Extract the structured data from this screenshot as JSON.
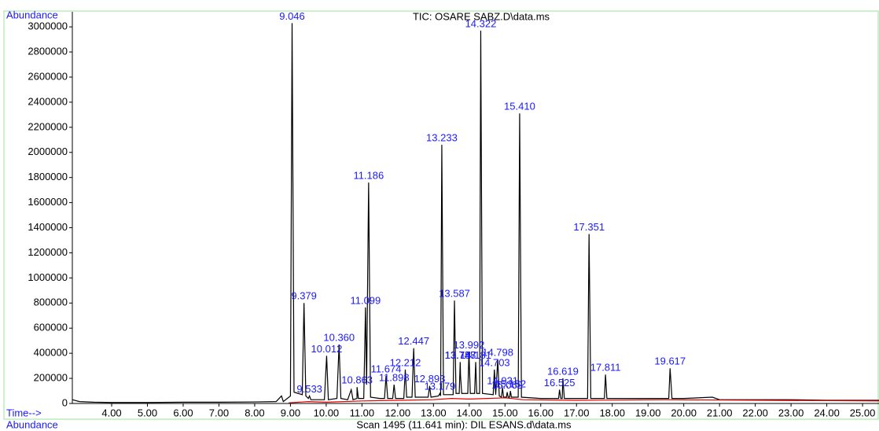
{
  "chart_data": {
    "type": "line",
    "title": "TIC: OSARE SABZ.D\\data.ms",
    "ylabel": "Abundance",
    "xlabel": "Time-->",
    "footer_label": "Abundance",
    "footer": "Scan 1495 (11.641 min): DIL ESANS.d\\data.ms",
    "xlim": [
      2.9,
      25.46
    ],
    "ylim": [
      0,
      3120000
    ],
    "xticks": [
      {
        "value": 4,
        "label": "4.00"
      },
      {
        "value": 5,
        "label": "5.00"
      },
      {
        "value": 6,
        "label": "6.00"
      },
      {
        "value": 7,
        "label": "7.00"
      },
      {
        "value": 8,
        "label": "8.00"
      },
      {
        "value": 9,
        "label": "9.00"
      },
      {
        "value": 10,
        "label": "10.00"
      },
      {
        "value": 11,
        "label": "11.00"
      },
      {
        "value": 12,
        "label": "12.00"
      },
      {
        "value": 13,
        "label": "13.00"
      },
      {
        "value": 14,
        "label": "14.00"
      },
      {
        "value": 15,
        "label": "15.00"
      },
      {
        "value": 16,
        "label": "16.00"
      },
      {
        "value": 17,
        "label": "17.00"
      },
      {
        "value": 18,
        "label": "18.00"
      },
      {
        "value": 19,
        "label": "19.00"
      },
      {
        "value": 20,
        "label": "20.00"
      },
      {
        "value": 21,
        "label": "21.00"
      },
      {
        "value": 22,
        "label": "22.00"
      },
      {
        "value": 23,
        "label": "23.00"
      },
      {
        "value": 24,
        "label": "24.00"
      },
      {
        "value": 25,
        "label": "25.00"
      }
    ],
    "yticks": [
      0,
      200000,
      400000,
      600000,
      800000,
      1000000,
      1200000,
      1400000,
      1600000,
      1800000,
      2000000,
      2200000,
      2400000,
      2600000,
      2800000,
      3000000
    ],
    "series": [
      {
        "name": "TIC",
        "color": "#000000",
        "x": [
          2.9,
          3.1,
          3.5,
          4.0,
          5.0,
          6.0,
          7.0,
          8.0,
          8.6,
          8.75,
          8.8,
          9.0,
          9.046,
          9.1,
          9.33,
          9.379,
          9.43,
          9.5,
          9.533,
          9.57,
          9.95,
          10.012,
          10.06,
          10.3,
          10.36,
          10.41,
          10.6,
          10.7,
          10.75,
          10.86,
          10.863,
          10.9,
          11.05,
          11.099,
          11.13,
          11.186,
          11.24,
          11.5,
          11.63,
          11.674,
          11.72,
          11.86,
          11.898,
          11.94,
          12.17,
          12.212,
          12.25,
          12.4,
          12.447,
          12.49,
          12.85,
          12.893,
          12.93,
          13.14,
          13.179,
          13.2,
          13.233,
          13.28,
          13.55,
          13.587,
          13.63,
          13.72,
          13.748,
          13.757,
          13.79,
          13.96,
          13.992,
          14.03,
          14.15,
          14.181,
          14.21,
          14.29,
          14.322,
          14.37,
          14.67,
          14.703,
          14.74,
          14.798,
          14.84,
          14.9,
          14.931,
          14.96,
          15.04,
          15.062,
          15.09,
          15.13,
          15.152,
          15.18,
          15.37,
          15.41,
          15.46,
          16.0,
          16.5,
          16.525,
          16.56,
          16.6,
          16.619,
          16.66,
          17.0,
          17.31,
          17.351,
          17.4,
          17.78,
          17.811,
          17.85,
          18.5,
          19.0,
          19.58,
          19.617,
          19.67,
          20.0,
          20.8,
          21.0,
          22.0,
          23.0,
          24.0,
          25.0,
          25.46
        ],
        "values": [
          30000,
          15000,
          10000,
          8000,
          8000,
          10000,
          10000,
          12000,
          15000,
          60000,
          15000,
          60000,
          3030000,
          90000,
          70000,
          800000,
          60000,
          40000,
          60000,
          30000,
          30000,
          380000,
          30000,
          40000,
          470000,
          40000,
          30000,
          110000,
          30000,
          40000,
          130000,
          40000,
          40000,
          765000,
          150000,
          1760000,
          50000,
          40000,
          40000,
          220000,
          40000,
          40000,
          150000,
          40000,
          40000,
          270000,
          50000,
          50000,
          440000,
          50000,
          50000,
          140000,
          50000,
          60000,
          80000,
          60000,
          2060000,
          70000,
          70000,
          820000,
          80000,
          80000,
          330000,
          220000,
          80000,
          80000,
          410000,
          80000,
          80000,
          330000,
          80000,
          80000,
          2970000,
          80000,
          70000,
          270000,
          70000,
          350000,
          60000,
          50000,
          125000,
          50000,
          50000,
          90000,
          50000,
          50000,
          100000,
          50000,
          50000,
          2310000,
          50000,
          40000,
          40000,
          110000,
          40000,
          40000,
          200000,
          40000,
          40000,
          40000,
          1350000,
          40000,
          40000,
          230000,
          40000,
          40000,
          40000,
          40000,
          280000,
          40000,
          40000,
          50000,
          30000,
          30000,
          30000,
          25000,
          25000,
          25000
        ]
      },
      {
        "name": "Baseline",
        "color": "#e00000",
        "x": [
          8.95,
          9.5,
          10.0,
          11.0,
          12.0,
          13.0,
          13.5,
          14.0,
          14.5,
          15.0,
          15.5,
          17.0,
          19.5,
          25.46
        ],
        "values": [
          5000,
          15000,
          10000,
          20000,
          25000,
          30000,
          40000,
          35000,
          40000,
          45000,
          30000,
          25000,
          30000,
          20000
        ]
      }
    ],
    "peaks": [
      {
        "value": 9.046,
        "label": "9.046"
      },
      {
        "value": 9.379,
        "label": "9.379"
      },
      {
        "value": 9.533,
        "label": "9.533"
      },
      {
        "value": 10.012,
        "label": "10.012"
      },
      {
        "value": 10.36,
        "label": "10.360"
      },
      {
        "value": 10.863,
        "label": "10.863"
      },
      {
        "value": 11.099,
        "label": "11.099"
      },
      {
        "value": 11.186,
        "label": "11.186"
      },
      {
        "value": 11.674,
        "label": "11.674"
      },
      {
        "value": 11.898,
        "label": "11.898"
      },
      {
        "value": 12.212,
        "label": "12.212"
      },
      {
        "value": 12.447,
        "label": "12.447"
      },
      {
        "value": 12.893,
        "label": "12.893"
      },
      {
        "value": 13.179,
        "label": "13.179"
      },
      {
        "value": 13.233,
        "label": "13.233"
      },
      {
        "value": 13.587,
        "label": "13.587"
      },
      {
        "value": 13.748,
        "label": "13.748"
      },
      {
        "value": 13.757,
        "label": "13.757"
      },
      {
        "value": 13.992,
        "label": "13.992"
      },
      {
        "value": 14.181,
        "label": "14.181"
      },
      {
        "value": 14.322,
        "label": "14.322"
      },
      {
        "value": 14.703,
        "label": "14.703"
      },
      {
        "value": 14.798,
        "label": "14.798"
      },
      {
        "value": 14.931,
        "label": "14.931"
      },
      {
        "value": 15.062,
        "label": "15.062"
      },
      {
        "value": 15.152,
        "label": "15.152"
      },
      {
        "value": 15.41,
        "label": "15.410"
      },
      {
        "value": 16.525,
        "label": "16.525"
      },
      {
        "value": 16.619,
        "label": "16.619"
      },
      {
        "value": 17.351,
        "label": "17.351"
      },
      {
        "value": 17.811,
        "label": "17.811"
      },
      {
        "value": 19.617,
        "label": "19.617"
      }
    ]
  }
}
